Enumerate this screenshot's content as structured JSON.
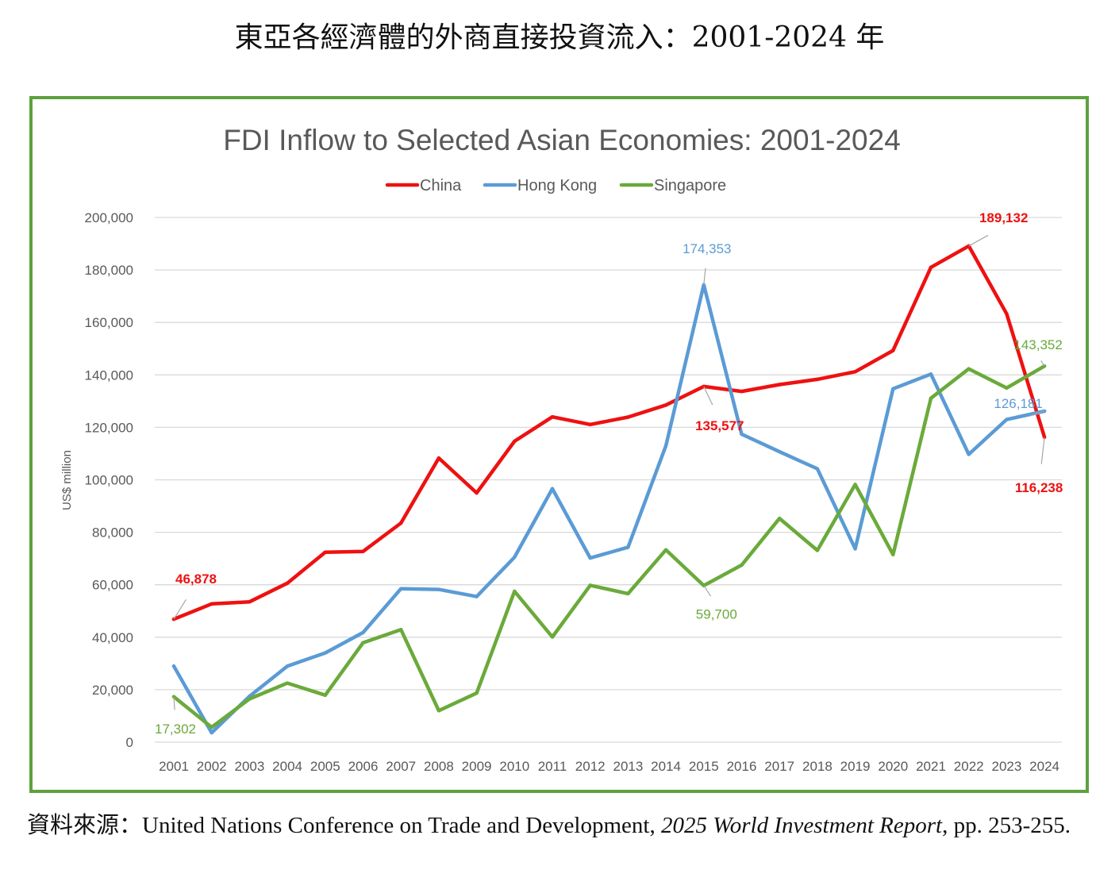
{
  "page": {
    "title": "東亞各經濟體的外商直接投資流入：2001-2024 年",
    "source_prefix": "資料來源：",
    "source_org": "United Nations Conference on Trade and Development, ",
    "source_report": "2025 World Investment Report",
    "source_suffix": ", pp. 253-255."
  },
  "colors": {
    "frame": "#5da13d",
    "china": "#ee1111",
    "hong_kong": "#5b9bd5",
    "singapore": "#6aaa3a",
    "grid": "#d9d9d9",
    "axis_text": "#595959"
  },
  "chart_data": {
    "type": "line",
    "title": "FDI Inflow to Selected Asian Economies: 2001-2024",
    "xlabel": "",
    "ylabel": "US$ million",
    "ylim": [
      0,
      200000
    ],
    "yticks": [
      0,
      20000,
      40000,
      60000,
      80000,
      100000,
      120000,
      140000,
      160000,
      180000,
      200000
    ],
    "ytick_labels": [
      "0",
      "20,000",
      "40,000",
      "60,000",
      "80,000",
      "100,000",
      "120,000",
      "140,000",
      "160,000",
      "180,000",
      "200,000"
    ],
    "grid": true,
    "legend_position": "top-center",
    "categories": [
      "2001",
      "2002",
      "2003",
      "2004",
      "2005",
      "2006",
      "2007",
      "2008",
      "2009",
      "2010",
      "2011",
      "2012",
      "2013",
      "2014",
      "2015",
      "2016",
      "2017",
      "2018",
      "2019",
      "2020",
      "2021",
      "2022",
      "2023",
      "2024"
    ],
    "series": [
      {
        "name": "China",
        "color": "#ee1111",
        "values": [
          46878,
          52700,
          53500,
          60600,
          72400,
          72700,
          83500,
          108300,
          95000,
          114700,
          124000,
          121100,
          123900,
          128500,
          135577,
          133700,
          136300,
          138300,
          141200,
          149300,
          181000,
          189132,
          163300,
          116238
        ]
      },
      {
        "name": "Hong Kong",
        "color": "#5b9bd5",
        "values": [
          29000,
          3600,
          17500,
          29000,
          34000,
          41800,
          58500,
          58200,
          55500,
          70500,
          96600,
          70200,
          74300,
          113000,
          174353,
          117400,
          110700,
          104200,
          73700,
          134700,
          140300,
          109700,
          123000,
          126181
        ]
      },
      {
        "name": "Singapore",
        "color": "#6aaa3a",
        "values": [
          17302,
          5700,
          16500,
          22500,
          17900,
          37900,
          42900,
          12000,
          18700,
          57500,
          40100,
          59800,
          56600,
          73300,
          59700,
          67500,
          85300,
          73100,
          98200,
          71500,
          131100,
          142300,
          135000,
          143352
        ]
      }
    ],
    "annotations": [
      {
        "series": "China",
        "year": "2001",
        "text": "46,878"
      },
      {
        "series": "China",
        "year": "2015",
        "text": "135,577"
      },
      {
        "series": "China",
        "year": "2022",
        "text": "189,132"
      },
      {
        "series": "China",
        "year": "2024",
        "text": "116,238"
      },
      {
        "series": "Hong Kong",
        "year": "2015",
        "text": "174,353"
      },
      {
        "series": "Hong Kong",
        "year": "2024",
        "text": "126,181"
      },
      {
        "series": "Singapore",
        "year": "2001",
        "text": "17,302"
      },
      {
        "series": "Singapore",
        "year": "2015",
        "text": "59,700"
      },
      {
        "series": "Singapore",
        "year": "2024",
        "text": "143,352"
      }
    ]
  }
}
